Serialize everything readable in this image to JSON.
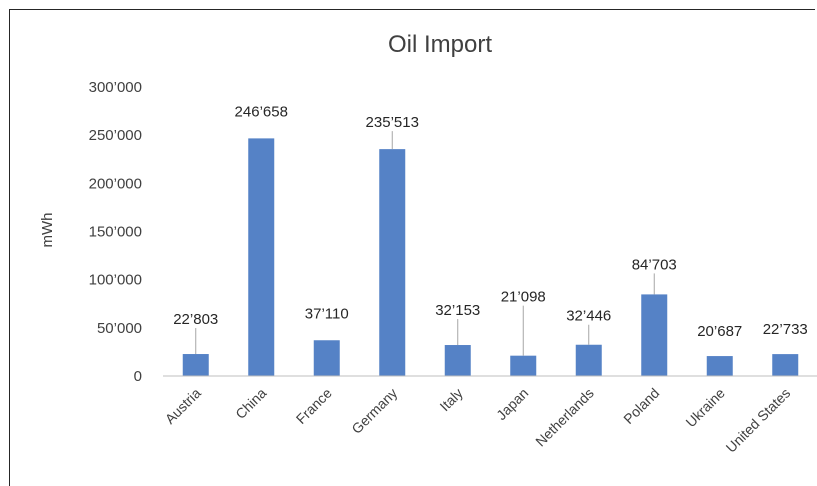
{
  "chart_data": {
    "type": "bar",
    "title": "Oil Import",
    "ylabel": "mWh",
    "xlabel": "",
    "categories": [
      "Austria",
      "China",
      "France",
      "Germany",
      "Italy",
      "Japan",
      "Netherlands",
      "Poland",
      "Ukraine",
      "United States"
    ],
    "values": [
      22803,
      246658,
      37110,
      235513,
      32153,
      21098,
      32446,
      84703,
      20687,
      22733
    ],
    "value_labels": [
      "22’803",
      "246’658",
      "37’110",
      "235’513",
      "32’153",
      "21’098",
      "32’446",
      "84’703",
      "20’687",
      "22’733"
    ],
    "y_ticks": [
      0,
      50000,
      100000,
      150000,
      200000,
      250000,
      300000
    ],
    "y_tick_labels": [
      "0",
      "50’000",
      "100’000",
      "150’000",
      "200’000",
      "250’000",
      "300’000"
    ],
    "ylim": [
      0,
      300000
    ],
    "grid": false,
    "legend": "none",
    "bar_color": "#5582c6"
  }
}
